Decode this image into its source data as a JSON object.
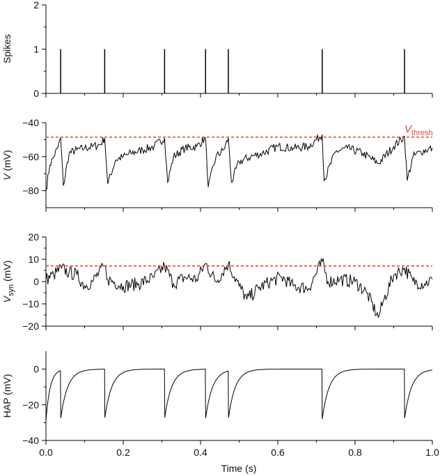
{
  "chart_data": [
    {
      "type": "line",
      "id": "spikes",
      "ylabel": "Spikes",
      "xlim": [
        0,
        1
      ],
      "ylim": [
        0,
        2
      ],
      "yticks": [
        0,
        1,
        2
      ],
      "ytick_labels": [
        "0",
        "1",
        "2"
      ],
      "spike_times": [
        0.038,
        0.152,
        0.307,
        0.413,
        0.472,
        0.715,
        0.928
      ],
      "spike_height": 1
    },
    {
      "type": "line",
      "id": "voltage",
      "ylabel": "V (mV)",
      "xlim": [
        0,
        1
      ],
      "ylim": [
        -90,
        -40
      ],
      "yticks": [
        -80,
        -60,
        -40
      ],
      "ytick_labels": [
        "−80",
        "−60",
        "−40"
      ],
      "threshold": -48.5,
      "threshold_label": "V",
      "threshold_label_sub": "thresh",
      "threshold_color": "#e8402b",
      "x": [
        0.0,
        0.01,
        0.02,
        0.03,
        0.038,
        0.045,
        0.06,
        0.08,
        0.1,
        0.12,
        0.14,
        0.152,
        0.16,
        0.18,
        0.2,
        0.22,
        0.25,
        0.28,
        0.307,
        0.315,
        0.33,
        0.36,
        0.39,
        0.413,
        0.42,
        0.44,
        0.46,
        0.472,
        0.48,
        0.5,
        0.53,
        0.56,
        0.6,
        0.64,
        0.68,
        0.715,
        0.72,
        0.75,
        0.78,
        0.82,
        0.86,
        0.9,
        0.928,
        0.935,
        0.95,
        0.97,
        1.0
      ],
      "y": [
        -80,
        -65,
        -60,
        -55,
        -49,
        -77,
        -58,
        -56,
        -55,
        -54,
        -53,
        -49,
        -76,
        -62,
        -60,
        -58,
        -56,
        -54,
        -49,
        -75,
        -60,
        -55,
        -54,
        -49,
        -78,
        -60,
        -56,
        -49,
        -75,
        -63,
        -60,
        -58,
        -54,
        -55,
        -54,
        -47,
        -74,
        -57,
        -55,
        -58,
        -64,
        -54,
        -48,
        -74,
        -60,
        -57,
        -55
      ]
    },
    {
      "type": "line",
      "id": "vsyn",
      "ylabel": "V",
      "ylabel_sub": "syn",
      "ylabel_unit": " (mV)",
      "xlim": [
        0,
        1
      ],
      "ylim": [
        -20,
        20
      ],
      "yticks": [
        -20,
        -10,
        0,
        10,
        20
      ],
      "ytick_labels": [
        "−20",
        "−10",
        "0",
        "10",
        "20"
      ],
      "threshold": 7,
      "threshold_color": "#e8402b",
      "x": [
        0.0,
        0.02,
        0.04,
        0.06,
        0.08,
        0.1,
        0.12,
        0.152,
        0.16,
        0.2,
        0.24,
        0.28,
        0.307,
        0.33,
        0.36,
        0.39,
        0.413,
        0.44,
        0.472,
        0.5,
        0.52,
        0.55,
        0.58,
        0.61,
        0.64,
        0.68,
        0.715,
        0.73,
        0.76,
        0.8,
        0.83,
        0.86,
        0.875,
        0.9,
        0.928,
        0.95,
        0.98,
        1.0
      ],
      "y": [
        1,
        3,
        6,
        4,
        3,
        -2,
        0,
        7,
        1,
        -2,
        -1,
        2,
        7,
        -1,
        2,
        1,
        8,
        0,
        8,
        -2,
        -8,
        -3,
        0,
        2,
        -2,
        -3,
        9,
        0,
        1,
        0,
        -5,
        -16,
        -8,
        3,
        6,
        0,
        -1,
        1
      ]
    },
    {
      "type": "line",
      "id": "hap",
      "ylabel": "HAP (mV)",
      "xlabel": "Time (s)",
      "xlim": [
        0,
        1
      ],
      "ylim": [
        -40,
        10
      ],
      "yticks": [
        -40,
        -20,
        0
      ],
      "ytick_labels": [
        "−40",
        "−20",
        "0"
      ],
      "xticks": [
        0.0,
        0.2,
        0.4,
        0.6,
        0.8,
        1.0
      ],
      "xtick_labels": [
        "0.0",
        "0.2",
        "0.4",
        "0.6",
        "0.8",
        "1.0"
      ],
      "initial_value": -29,
      "spike_times": [
        0.038,
        0.152,
        0.307,
        0.413,
        0.472,
        0.715,
        0.928
      ],
      "hap_amplitude": -28,
      "hap_time_constant": 0.018
    }
  ]
}
